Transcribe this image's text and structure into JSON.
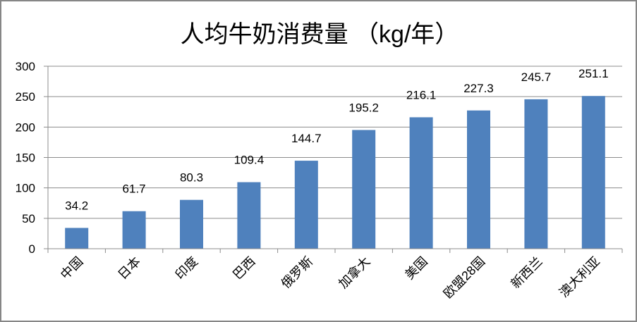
{
  "chart_data": {
    "type": "bar",
    "title": "人均牛奶消费量 （kg/年）",
    "xlabel": "",
    "ylabel": "",
    "categories": [
      "中国",
      "日本",
      "印度",
      "巴西",
      "俄罗斯",
      "加拿大",
      "美国",
      "欧盟28国",
      "新西兰",
      "澳大利亚"
    ],
    "values": [
      34.2,
      61.7,
      80.3,
      109.4,
      144.7,
      195.2,
      216.1,
      227.3,
      245.7,
      251.1
    ],
    "data_labels": [
      "34.2",
      "61.7",
      "80.3",
      "109.4",
      "144.7",
      "195.2",
      "216.1",
      "227.3",
      "245.7",
      "251.1"
    ],
    "ylim": [
      0,
      300
    ],
    "yticks": [
      "0",
      "50",
      "100",
      "150",
      "200",
      "250",
      "300"
    ],
    "grid": true,
    "legend": "none",
    "bar_color": "#4F81BD"
  }
}
